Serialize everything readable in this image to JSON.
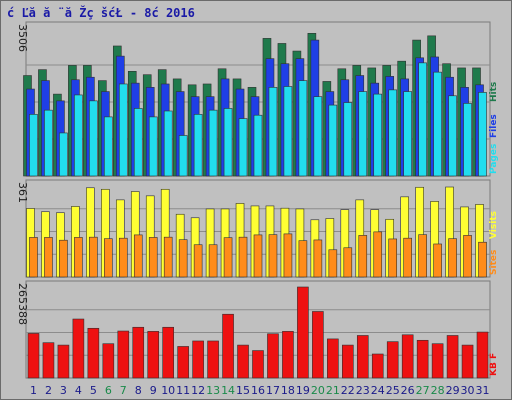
{
  "title": "ć Ľă  ă ¨ă Žç šćŁ  - 8ć   2016",
  "colors": {
    "background": "#c0c0c0",
    "panel": "#c0c0c0",
    "hits": "#1f7a4c",
    "files": "#1f3fe6",
    "pages": "#22ddee",
    "visits": "#ffff33",
    "sites": "#ff8c1a",
    "kbytes": "#ee1111",
    "weekend_label": "#1a8a4a",
    "weekday_label": "#1a1a8a"
  },
  "chart_data": [
    {
      "type": "bar",
      "panel": "top",
      "categories": [
        "1",
        "2",
        "3",
        "4",
        "5",
        "6",
        "7",
        "8",
        "9",
        "10",
        "11",
        "12",
        "13",
        "14",
        "15",
        "16",
        "17",
        "18",
        "19",
        "20",
        "21",
        "22",
        "23",
        "24",
        "25",
        "26",
        "27",
        "28",
        "29",
        "30",
        "31"
      ],
      "ymax_label": "3506",
      "ylim": [
        0,
        3506
      ],
      "legend": [
        "Hits",
        "Files",
        "Pages"
      ],
      "series": [
        {
          "name": "Hits",
          "color_key": "hits",
          "values": [
            2380,
            2520,
            1940,
            2620,
            2620,
            2260,
            3080,
            2480,
            2400,
            2520,
            2300,
            2160,
            2180,
            2540,
            2300,
            2100,
            3260,
            3140,
            2960,
            3380,
            2240,
            2540,
            2620,
            2560,
            2620,
            2720,
            3220,
            3320,
            2660,
            2560,
            2560
          ]
        },
        {
          "name": "Files",
          "color_key": "files",
          "values": [
            2060,
            2260,
            1780,
            2280,
            2340,
            2000,
            2840,
            2200,
            2100,
            2180,
            2000,
            1880,
            1880,
            2300,
            2060,
            1880,
            2780,
            2660,
            2780,
            3220,
            2000,
            2280,
            2380,
            2200,
            2360,
            2300,
            2800,
            2820,
            2340,
            2100,
            2160
          ]
        },
        {
          "name": "Pages",
          "color_key": "pages",
          "values": [
            1460,
            1560,
            1020,
            1920,
            1780,
            1400,
            2180,
            1600,
            1400,
            1540,
            960,
            1460,
            1560,
            1600,
            1360,
            1440,
            2100,
            2120,
            2260,
            1880,
            1680,
            1740,
            2000,
            1940,
            2040,
            2000,
            2680,
            2460,
            1900,
            1720,
            1980
          ]
        }
      ]
    },
    {
      "type": "bar",
      "panel": "middle",
      "categories": [
        "1",
        "2",
        "3",
        "4",
        "5",
        "6",
        "7",
        "8",
        "9",
        "10",
        "11",
        "12",
        "13",
        "14",
        "15",
        "16",
        "17",
        "18",
        "19",
        "20",
        "21",
        "22",
        "23",
        "24",
        "25",
        "26",
        "27",
        "28",
        "29",
        "30",
        "31"
      ],
      "ymax_label": "361",
      "ylim": [
        0,
        361
      ],
      "legend": [
        "Visits",
        "Sites"
      ],
      "series": [
        {
          "name": "Visits",
          "color_key": "visits",
          "values": [
            272,
            259,
            255,
            280,
            354,
            348,
            306,
            339,
            322,
            348,
            249,
            235,
            270,
            270,
            292,
            282,
            282,
            273,
            270,
            227,
            232,
            267,
            306,
            267,
            229,
            318,
            356,
            300,
            357,
            278,
            288
          ]
        },
        {
          "name": "Sites",
          "color_key": "sites",
          "values": [
            157,
            157,
            146,
            157,
            158,
            152,
            154,
            167,
            157,
            158,
            148,
            128,
            128,
            156,
            158,
            167,
            168,
            171,
            144,
            147,
            108,
            116,
            165,
            179,
            151,
            154,
            168,
            131,
            152,
            165,
            138
          ]
        }
      ]
    },
    {
      "type": "bar",
      "panel": "bottom",
      "categories": [
        "1",
        "2",
        "3",
        "4",
        "5",
        "6",
        "7",
        "8",
        "9",
        "10",
        "11",
        "12",
        "13",
        "14",
        "15",
        "16",
        "17",
        "18",
        "19",
        "20",
        "21",
        "22",
        "23",
        "24",
        "25",
        "26",
        "27",
        "28",
        "29",
        "30",
        "31"
      ],
      "ymax_label": "265388",
      "ylim": [
        0,
        265388
      ],
      "legend": [
        "KB F"
      ],
      "series": [
        {
          "name": "KB F",
          "color_key": "kbytes",
          "values": [
            130000,
            103000,
            96000,
            172000,
            145000,
            100000,
            137000,
            148000,
            136000,
            148000,
            92000,
            108000,
            108000,
            186000,
            96000,
            80000,
            129000,
            136000,
            265388,
            194000,
            114000,
            96000,
            124000,
            70000,
            106000,
            126000,
            110000,
            100000,
            124000,
            96000,
            134000
          ]
        }
      ]
    }
  ],
  "weekend_days": [
    6,
    7,
    13,
    14,
    20,
    21,
    27,
    28
  ]
}
